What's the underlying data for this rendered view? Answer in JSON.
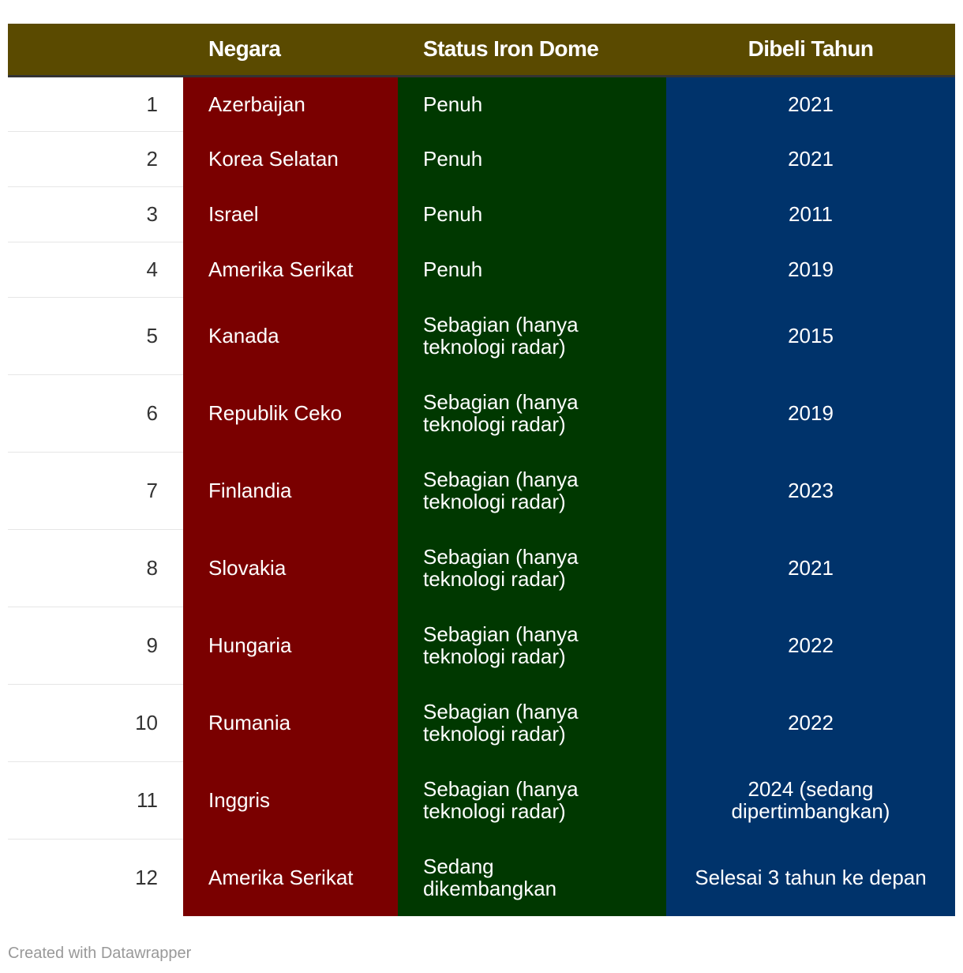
{
  "header": {
    "number": "",
    "country": "Negara",
    "status": "Status Iron Dome",
    "year": "Dibeli Tahun"
  },
  "rows": [
    {
      "no": "1",
      "country": "Azerbaijan",
      "status": "Penuh",
      "year": "2021"
    },
    {
      "no": "2",
      "country": "Korea Selatan",
      "status": "Penuh",
      "year": "2021"
    },
    {
      "no": "3",
      "country": "Israel",
      "status": "Penuh",
      "year": "2011"
    },
    {
      "no": "4",
      "country": "Amerika Serikat",
      "status": "Penuh",
      "year": "2019"
    },
    {
      "no": "5",
      "country": "Kanada",
      "status": "Sebagian (hanya teknologi radar)",
      "year": "2015"
    },
    {
      "no": "6",
      "country": "Republik Ceko",
      "status": "Sebagian (hanya teknologi radar)",
      "year": "2019"
    },
    {
      "no": "7",
      "country": "Finlandia",
      "status": "Sebagian (hanya teknologi radar)",
      "year": "2023"
    },
    {
      "no": "8",
      "country": "Slovakia",
      "status": "Sebagian (hanya teknologi radar)",
      "year": "2021"
    },
    {
      "no": "9",
      "country": "Hungaria",
      "status": "Sebagian (hanya teknologi radar)",
      "year": "2022"
    },
    {
      "no": "10",
      "country": "Rumania",
      "status": "Sebagian (hanya teknologi radar)",
      "year": "2022"
    },
    {
      "no": "11",
      "country": "Inggris",
      "status": "Sebagian (hanya teknologi radar)",
      "year": "2024 (sedang dipertimbangkan)"
    },
    {
      "no": "12",
      "country": "Amerika Serikat",
      "status": "Sedang dikembangkan",
      "year": "Selesai 3 tahun ke depan"
    }
  ],
  "footer": "Created with Datawrapper",
  "colors": {
    "header_bg": "#5a4a00",
    "country_bg": "#7a0000",
    "status_bg": "#003800",
    "year_bg": "#00336b",
    "text": "#ffffff",
    "number_text": "#333333",
    "footer_text": "#999999"
  },
  "chart_data": {
    "type": "table",
    "columns": [
      "",
      "Negara",
      "Status Iron Dome",
      "Dibeli Tahun"
    ],
    "rows": [
      [
        "1",
        "Azerbaijan",
        "Penuh",
        "2021"
      ],
      [
        "2",
        "Korea Selatan",
        "Penuh",
        "2021"
      ],
      [
        "3",
        "Israel",
        "Penuh",
        "2011"
      ],
      [
        "4",
        "Amerika Serikat",
        "Penuh",
        "2019"
      ],
      [
        "5",
        "Kanada",
        "Sebagian (hanya teknologi radar)",
        "2015"
      ],
      [
        "6",
        "Republik Ceko",
        "Sebagian (hanya teknologi radar)",
        "2019"
      ],
      [
        "7",
        "Finlandia",
        "Sebagian (hanya teknologi radar)",
        "2023"
      ],
      [
        "8",
        "Slovakia",
        "Sebagian (hanya teknologi radar)",
        "2021"
      ],
      [
        "9",
        "Hungaria",
        "Sebagian (hanya teknologi radar)",
        "2022"
      ],
      [
        "10",
        "Rumania",
        "Sebagian (hanya teknologi radar)",
        "2022"
      ],
      [
        "11",
        "Inggris",
        "Sebagian (hanya teknologi radar)",
        "2024 (sedang dipertimbangkan)"
      ],
      [
        "12",
        "Amerika Serikat",
        "Sedang dikembangkan",
        "Selesai 3 tahun ke depan"
      ]
    ]
  }
}
